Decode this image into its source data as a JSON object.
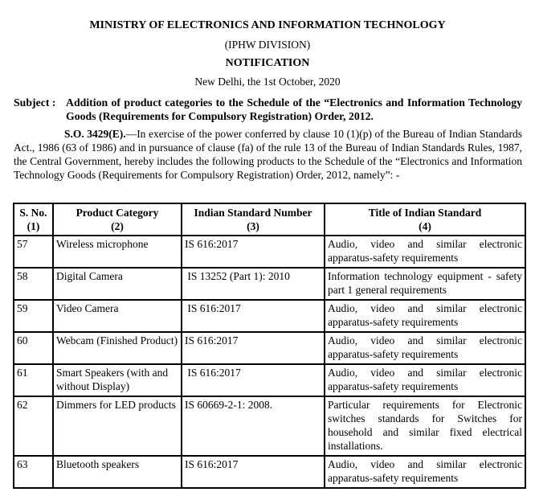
{
  "header": {
    "ministry": "MINISTRY OF ELECTRONICS AND INFORMATION TECHNOLOGY",
    "division": "(IPHW DIVISION)",
    "notification": "NOTIFICATION",
    "place_date": "New Delhi, the 1st October, 2020"
  },
  "subject": {
    "label": "Subject :",
    "text": "Addition of product categories to the Schedule of the “Electronics and Information Technology Goods (Requirements for Compulsory Registration) Order, 2012."
  },
  "paragraph": {
    "so_number": "S.O. 3429(E).",
    "text": "—In exercise of the power conferred by clause 10 (1)(p) of the Bureau of Indian Standards Act., 1986 (63 of 1986) and in pursuance of clause (fa) of the rule 13 of the Bureau of Indian Standards Rules, 1987, the Central Government, hereby includes the following products to the Schedule of the “Electronics and Information Technology Goods (Requirements for Compulsory Registration) Order, 2012, namely”: -"
  },
  "table": {
    "headers": [
      {
        "title": "S. No.",
        "num": "(1)"
      },
      {
        "title": "Product Category",
        "num": "(2)"
      },
      {
        "title": "Indian Standard Number",
        "num": "(3)"
      },
      {
        "title": "Title of Indian Standard",
        "num": "(4)"
      }
    ],
    "rows": [
      {
        "sno": "57",
        "category": "Wireless microphone",
        "standard": "IS 616:2017",
        "title": "Audio, video and similar electronic apparatus-safety requirements"
      },
      {
        "sno": "58",
        "category": "Digital Camera",
        "standard": " IS 13252 (Part 1): 2010",
        "title": "Information technology equipment - safety part 1 general requirements"
      },
      {
        "sno": "59",
        "category": "Video Camera",
        "standard": " IS 616:2017",
        "title": "Audio, video and similar electronic apparatus-safety requirements"
      },
      {
        "sno": "60",
        "category": "Webcam (Finished Product)",
        "standard": "IS 616:2017",
        "title": "Audio, video and similar electronic apparatus-safety requirements"
      },
      {
        "sno": "61",
        "category": "Smart Speakers (with and without Display)",
        "standard": " IS 616:2017",
        "title": "Audio, video and similar electronic apparatus-safety requirements"
      },
      {
        "sno": "62",
        "category": "Dimmers for LED products",
        "standard": "IS 60669-2-1: 2008.",
        "title": "Particular requirements for Electronic switches standards for Switches for household and similar fixed electrical installations."
      },
      {
        "sno": "63",
        "category": "Bluetooth speakers",
        "standard": "IS 616:2017",
        "title": "Audio, video and similar electronic apparatus-safety requirements"
      }
    ]
  }
}
